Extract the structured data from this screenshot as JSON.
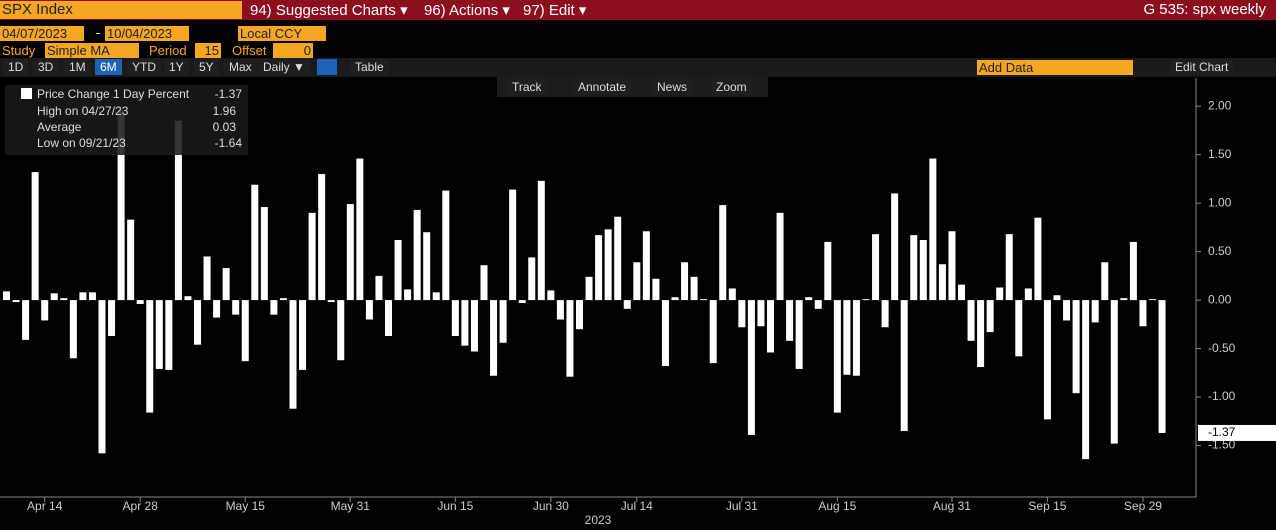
{
  "header": {
    "ticker": "SPX Index",
    "menus": [
      "94) Suggested Charts ▾",
      "96) Actions ▾",
      "97) Edit ▾"
    ],
    "chart_name": "G 535: spx weekly"
  },
  "controls": {
    "start_date": "04/07/2023",
    "dash": "-",
    "end_date": "10/04/2023",
    "currency": "Local CCY",
    "study_label": "Study",
    "study": "Simple MA",
    "period_label": "Period",
    "period": "15",
    "offset_label": "Offset",
    "offset": "0"
  },
  "toolbar": {
    "ranges": [
      "1D",
      "3D",
      "1M",
      "6M",
      "YTD",
      "1Y",
      "5Y",
      "Max"
    ],
    "frequency": "Daily ▼",
    "table": "Table",
    "add_data": "Add Data",
    "edit_chart": "Edit Chart",
    "tools": [
      "Track",
      "Annotate",
      "News",
      "Zoom"
    ]
  },
  "legend": {
    "rows": [
      {
        "label": "Price Change 1 Day Percent",
        "value": -1.37
      },
      {
        "label": "High on 04/27/23",
        "value": 1.96
      },
      {
        "label": "Average",
        "value": 0.03
      },
      {
        "label": "Low on 09/21/23",
        "value": -1.64
      }
    ]
  },
  "chart_data": {
    "type": "bar",
    "x_label": "2023",
    "categories": [
      null,
      null,
      null,
      null,
      "Apr 14",
      null,
      null,
      null,
      null,
      null,
      null,
      null,
      null,
      null,
      "Apr 28",
      null,
      null,
      null,
      null,
      null,
      null,
      null,
      null,
      null,
      null,
      "May 15",
      null,
      null,
      null,
      null,
      null,
      null,
      null,
      null,
      null,
      null,
      "May 31",
      null,
      null,
      null,
      null,
      null,
      null,
      null,
      null,
      null,
      null,
      "Jun 15",
      null,
      null,
      null,
      null,
      null,
      null,
      null,
      null,
      null,
      "Jun 30",
      null,
      null,
      null,
      null,
      null,
      null,
      null,
      null,
      "Jul 14",
      null,
      null,
      null,
      null,
      null,
      null,
      null,
      null,
      null,
      null,
      "Jul 31",
      null,
      null,
      null,
      null,
      null,
      null,
      null,
      null,
      null,
      "Aug 15",
      null,
      null,
      null,
      null,
      null,
      null,
      null,
      null,
      null,
      null,
      null,
      "Aug 31",
      null,
      null,
      null,
      null,
      null,
      null,
      null,
      null,
      null,
      "Sep 15",
      null,
      null,
      null,
      null,
      null,
      null,
      null,
      null,
      null,
      "Sep 29",
      null,
      null
    ],
    "series": [
      {
        "name": "Price Change 1 Day Percent",
        "color": "#ffffff",
        "values": [
          0.09,
          -0.02,
          -0.41,
          1.32,
          -0.21,
          0.07,
          0.02,
          -0.6,
          0.08,
          0.08,
          -1.58,
          -0.37,
          1.96,
          0.83,
          -0.04,
          -1.16,
          -0.71,
          -0.72,
          1.85,
          0.04,
          -0.46,
          0.45,
          -0.18,
          0.33,
          -0.15,
          -0.63,
          1.19,
          0.96,
          -0.15,
          0.02,
          -1.12,
          -0.72,
          0.9,
          1.3,
          -0.02,
          -0.62,
          0.99,
          1.46,
          -0.2,
          0.25,
          -0.37,
          0.62,
          0.11,
          0.93,
          0.7,
          0.08,
          1.13,
          -0.37,
          -0.47,
          -0.53,
          0.36,
          -0.78,
          -0.44,
          1.14,
          -0.03,
          0.44,
          1.23,
          0.1,
          -0.2,
          -0.79,
          -0.3,
          0.24,
          0.67,
          0.73,
          0.86,
          -0.09,
          0.39,
          0.71,
          0.22,
          -0.68,
          0.03,
          0.39,
          0.24,
          0.01,
          -0.65,
          0.98,
          0.12,
          -0.28,
          -1.39,
          -0.27,
          -0.54,
          0.9,
          -0.42,
          -0.71,
          0.03,
          -0.09,
          0.6,
          -1.16,
          -0.77,
          -0.78,
          0.01,
          0.68,
          -0.28,
          1.1,
          -1.35,
          0.67,
          0.62,
          1.46,
          0.37,
          0.71,
          0.16,
          -0.42,
          -0.69,
          -0.33,
          0.13,
          0.68,
          -0.58,
          0.12,
          0.85,
          -1.23,
          0.05,
          -0.21,
          -0.96,
          -1.64,
          -0.23,
          0.39,
          -1.48,
          0.02,
          0.6,
          -0.27,
          0.01,
          -1.37
        ]
      }
    ],
    "ylim": [
      -2.01,
      2.27
    ],
    "yticks": [
      {
        "value": -1.5,
        "label": "-1.50"
      },
      {
        "value": -1,
        "label": "-1.00"
      },
      {
        "value": -0.5,
        "label": "-0.50"
      },
      {
        "value": 0,
        "label": "0.00"
      },
      {
        "value": 0.5,
        "label": "0.50"
      },
      {
        "value": 1,
        "label": "1.00"
      },
      {
        "value": 1.5,
        "label": "1.50"
      },
      {
        "value": 2,
        "label": "2.00"
      }
    ],
    "grid": false
  }
}
